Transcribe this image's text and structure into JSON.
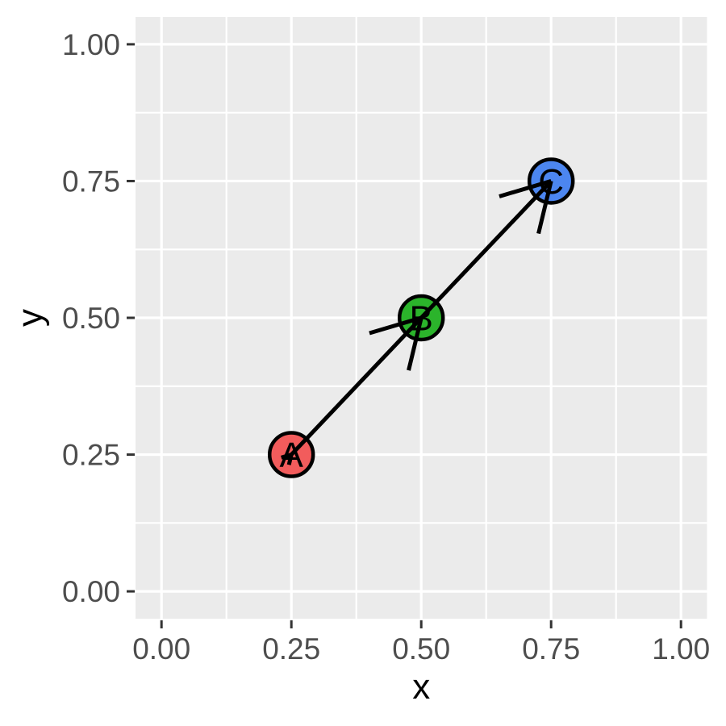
{
  "chart_data": {
    "type": "scatter",
    "title": "",
    "xlabel": "x",
    "ylabel": "y",
    "xlim": [
      -0.05,
      1.05
    ],
    "ylim": [
      -0.05,
      1.05
    ],
    "grid": true,
    "legend": "none",
    "x_tick_values": [
      0,
      0.25,
      0.5,
      0.75,
      1
    ],
    "x_tick_labels": [
      "0.00",
      "0.25",
      "0.50",
      "0.75",
      "1.00"
    ],
    "y_tick_values": [
      0,
      0.25,
      0.5,
      0.75,
      1
    ],
    "y_tick_labels": [
      "0.00",
      "0.25",
      "0.50",
      "0.75",
      "1.00"
    ],
    "minor_tick_values": [
      0.125,
      0.375,
      0.625,
      0.875
    ],
    "points": [
      {
        "label": "A",
        "x": 0.25,
        "y": 0.25,
        "fill": "#F25C5C"
      },
      {
        "label": "B",
        "x": 0.5,
        "y": 0.5,
        "fill": "#2BB42B"
      },
      {
        "label": "C",
        "x": 0.75,
        "y": 0.75,
        "fill": "#4C86F0"
      }
    ],
    "arrows": [
      {
        "from": "A",
        "to": "B",
        "head_at_end": true,
        "small_head_at_start": true
      },
      {
        "from": "B",
        "to": "C",
        "head_at_end": true,
        "small_head_at_start": false
      }
    ],
    "colors": {
      "panel_background": "#EBEBEB",
      "grid_line": "#FFFFFF",
      "tick_mark": "#333333",
      "tick_label_text": "#4D4D4D",
      "axis_title_text": "#000000",
      "point_outline": "#000000",
      "point_letter": "#000000",
      "arrow_line": "#000000"
    }
  }
}
